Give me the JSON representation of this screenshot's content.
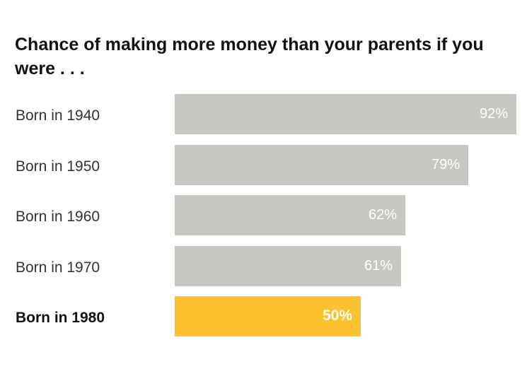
{
  "chart_data": {
    "type": "bar",
    "orientation": "horizontal",
    "title": "Chance of making more money than your parents if you were . . .",
    "categories": [
      "Born in 1940",
      "Born in 1950",
      "Born in 1960",
      "Born in 1970",
      "Born in 1980"
    ],
    "values": [
      92,
      79,
      62,
      61,
      50
    ],
    "value_labels": [
      "92%",
      "79%",
      "62%",
      "61%",
      "50%"
    ],
    "highlight_index": 4,
    "xlim": [
      0,
      92
    ],
    "grid": false,
    "colors": {
      "default": "#c8c7c2",
      "highlight": "#fbc22d"
    }
  }
}
